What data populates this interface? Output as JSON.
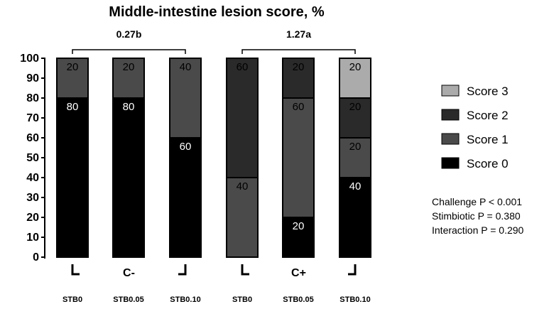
{
  "chart_data": {
    "type": "bar",
    "stacked": true,
    "title": "Middle-intestine lesion score, %",
    "ylim": [
      0,
      100
    ],
    "yticks": [
      0,
      10,
      20,
      30,
      40,
      50,
      60,
      70,
      80,
      90,
      100
    ],
    "categories": [
      "STB0",
      "STB0.05",
      "STB0.10",
      "STB0",
      "STB0.05",
      "STB0.10"
    ],
    "groups": [
      {
        "label": "C-",
        "bars": [
          0,
          1,
          2
        ],
        "annotation": "0.27b"
      },
      {
        "label": "C+",
        "bars": [
          3,
          4,
          5
        ],
        "annotation": "1.27a"
      }
    ],
    "series": [
      {
        "name": "Score 0",
        "color": "#000000",
        "values": [
          80,
          80,
          60,
          0,
          20,
          40
        ],
        "labels": [
          "80",
          "80",
          "60",
          "",
          "20",
          "40"
        ],
        "label_color": "#ffffff"
      },
      {
        "name": "Score 1",
        "color": "#4a4a4a",
        "values": [
          20,
          20,
          40,
          40,
          60,
          20
        ],
        "labels": [
          "20",
          "20",
          "40",
          "40",
          "60",
          "20"
        ],
        "label_color": "#000000"
      },
      {
        "name": "Score 2",
        "color": "#2a2a2a",
        "values": [
          0,
          0,
          0,
          60,
          20,
          20
        ],
        "labels": [
          "",
          "",
          "",
          "60",
          "20",
          "20"
        ],
        "label_color": "#000000"
      },
      {
        "name": "Score 3",
        "color": "#ababab",
        "values": [
          0,
          0,
          0,
          0,
          0,
          20
        ],
        "labels": [
          "",
          "",
          "",
          "",
          "",
          "20"
        ],
        "label_color": "#000000"
      }
    ],
    "legend_position": "right",
    "stats": [
      "Challenge P < 0.001",
      "Stimbiotic P = 0.380",
      "Interaction P = 0.290"
    ]
  }
}
